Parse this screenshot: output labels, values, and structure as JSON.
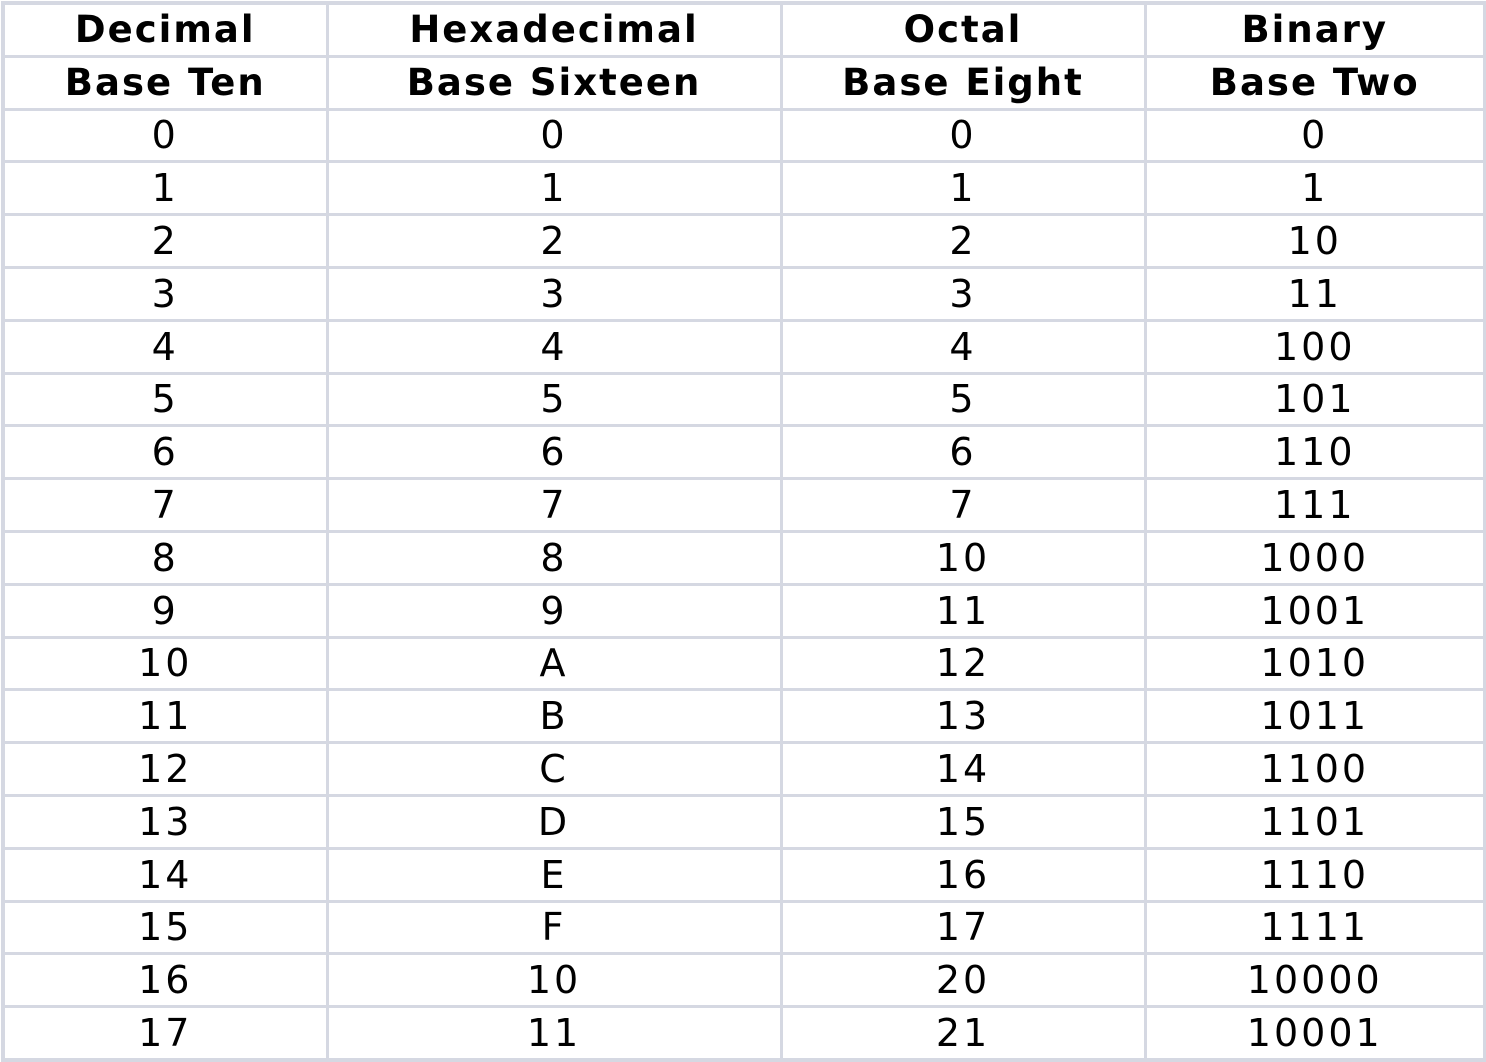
{
  "table": {
    "headers": [
      {
        "line1": "Decimal",
        "line2": "Base Ten"
      },
      {
        "line1": "Hexadecimal",
        "line2": "Base Sixteen"
      },
      {
        "line1": "Octal",
        "line2": "Base Eight"
      },
      {
        "line1": "Binary",
        "line2": "Base Two"
      }
    ],
    "rows": [
      [
        "0",
        "0",
        "0",
        "0"
      ],
      [
        "1",
        "1",
        "1",
        "1"
      ],
      [
        "2",
        "2",
        "2",
        "10"
      ],
      [
        "3",
        "3",
        "3",
        "11"
      ],
      [
        "4",
        "4",
        "4",
        "100"
      ],
      [
        "5",
        "5",
        "5",
        "101"
      ],
      [
        "6",
        "6",
        "6",
        "110"
      ],
      [
        "7",
        "7",
        "7",
        "111"
      ],
      [
        "8",
        "8",
        "10",
        "1000"
      ],
      [
        "9",
        "9",
        "11",
        "1001"
      ],
      [
        "10",
        "A",
        "12",
        "1010"
      ],
      [
        "11",
        "B",
        "13",
        "1011"
      ],
      [
        "12",
        "C",
        "14",
        "1100"
      ],
      [
        "13",
        "D",
        "15",
        "1101"
      ],
      [
        "14",
        "E",
        "16",
        "1110"
      ],
      [
        "15",
        "F",
        "17",
        "1111"
      ],
      [
        "16",
        "10",
        "20",
        "10000"
      ],
      [
        "17",
        "11",
        "21",
        "10001"
      ]
    ],
    "border_color": "#d5d8e2"
  }
}
